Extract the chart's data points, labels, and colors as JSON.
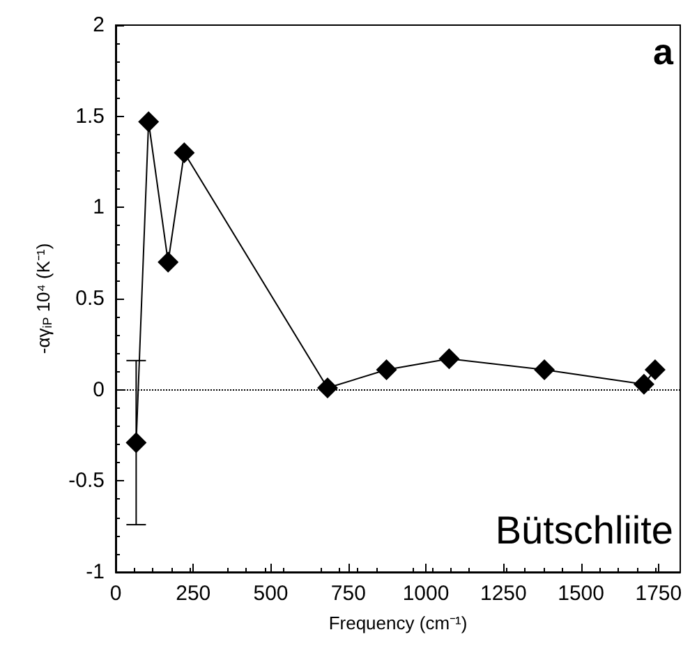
{
  "chart_data": {
    "type": "line",
    "xlabel": "Frequency (cm⁻¹)",
    "ylabel": "-αγ$_{iP}$ 10⁴ (K⁻¹)",
    "x": [
      66,
      106,
      169,
      221,
      683,
      873,
      1075,
      1382,
      1703,
      1739
    ],
    "series": [
      {
        "color": "#000000",
        "values": [
          -0.29,
          1.47,
          0.7,
          1.3,
          0.01,
          0.11,
          0.17,
          0.11,
          0.03,
          0.11
        ],
        "errors": [
          [
            -0.74,
            0.16
          ],
          null,
          null,
          null,
          null,
          null,
          null,
          null,
          null,
          null
        ]
      }
    ],
    "xlim": [
      0,
      1820
    ],
    "xticks": [
      0,
      250,
      500,
      750,
      1000,
      1250,
      1500,
      1750
    ],
    "ylim": [
      -1,
      2
    ],
    "yticks": [
      -1,
      -0.5,
      0,
      0.5,
      1,
      1.5,
      2
    ],
    "ref_lines": [
      {
        "axis": "y",
        "value": 0,
        "line_style": "dotted",
        "color": "#000000"
      }
    ],
    "annotations": [
      "a",
      "Bütschliite"
    ],
    "marker": "diamond",
    "line_style": "solid",
    "grid": false
  }
}
